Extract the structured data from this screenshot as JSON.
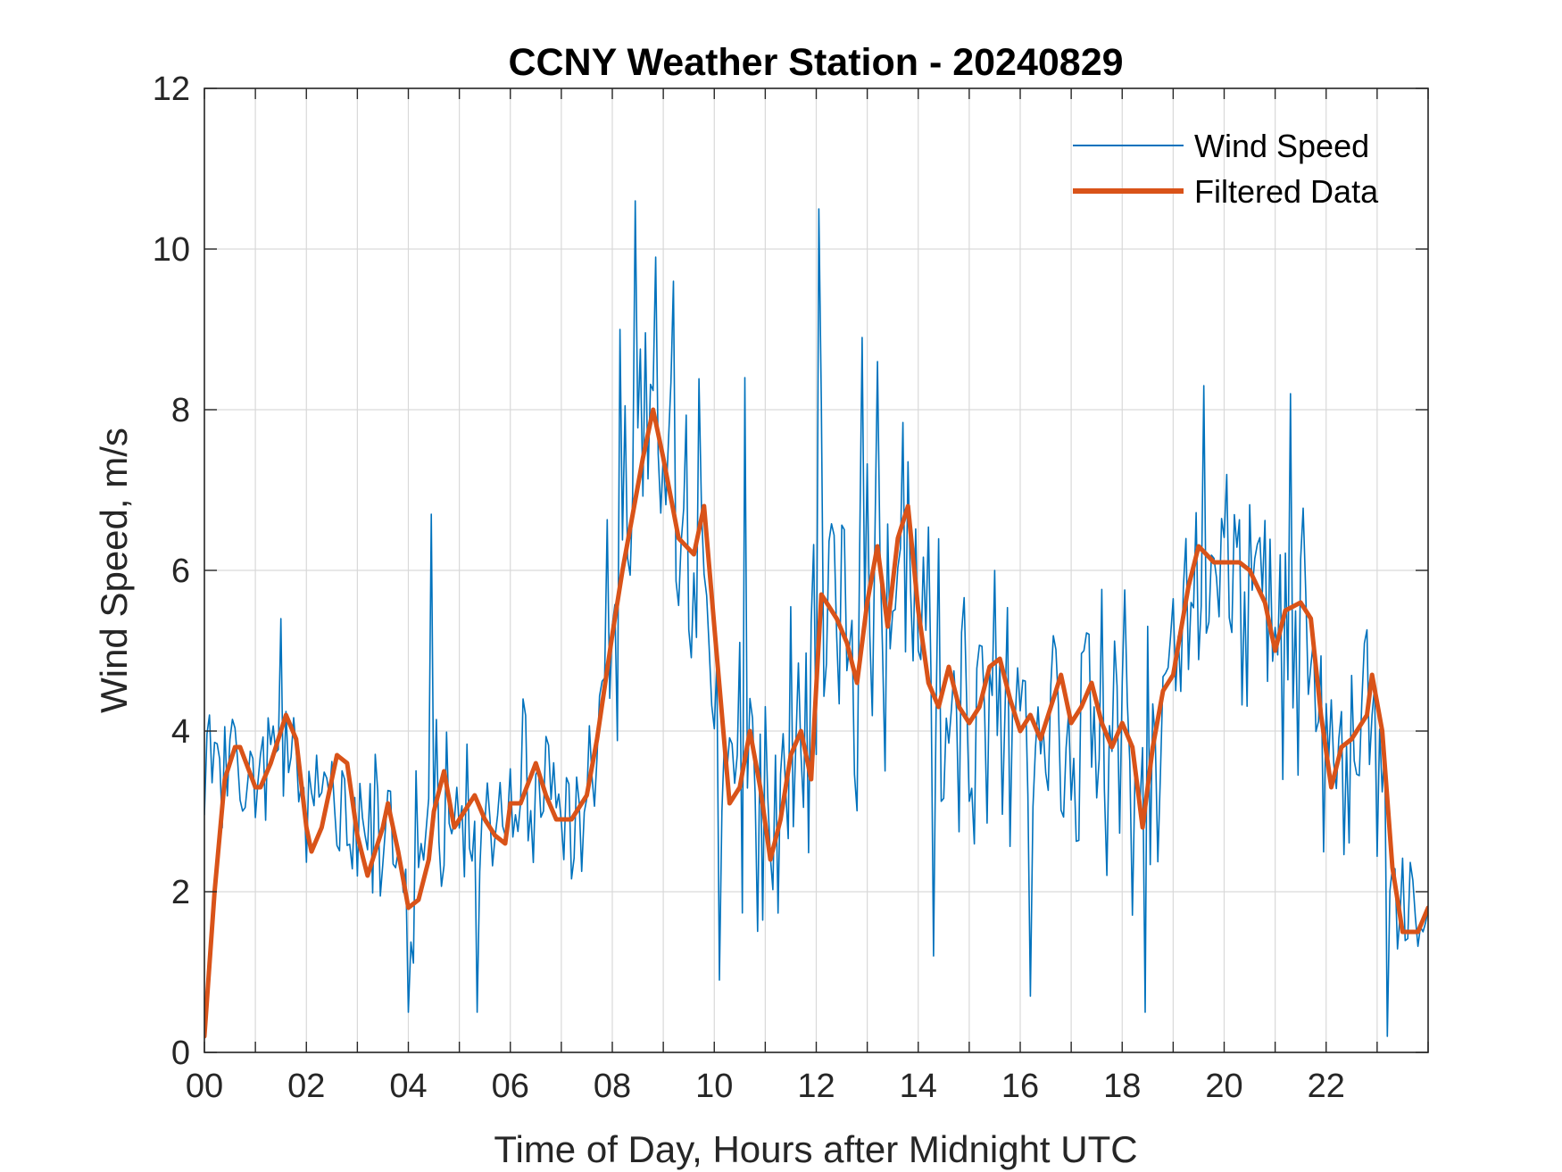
{
  "chart_data": {
    "type": "line",
    "title": "CCNY Weather Station - 20240829",
    "xlabel": "Time of Day, Hours after Midnight UTC",
    "ylabel": "Wind Speed, m/s",
    "xlim": [
      0,
      24
    ],
    "ylim": [
      0,
      12
    ],
    "x_ticks": [
      0,
      2,
      4,
      6,
      8,
      10,
      12,
      14,
      16,
      18,
      20,
      22
    ],
    "x_tick_labels": [
      "00",
      "02",
      "04",
      "06",
      "08",
      "10",
      "12",
      "14",
      "16",
      "18",
      "20",
      "22"
    ],
    "y_ticks": [
      0,
      2,
      4,
      6,
      8,
      10,
      12
    ],
    "y_tick_labels": [
      "0",
      "2",
      "4",
      "6",
      "8",
      "10",
      "12"
    ],
    "grid": true,
    "legend_position": "top-right",
    "series": [
      {
        "name": "Wind Speed",
        "color": "#0072BD",
        "style": "thin-noisy",
        "x_step": 0.05,
        "base": [
          [
            0.0,
            3.3
          ],
          [
            0.5,
            3.6
          ],
          [
            1.0,
            3.5
          ],
          [
            1.5,
            3.9
          ],
          [
            2.0,
            2.9
          ],
          [
            2.5,
            3.4
          ],
          [
            3.0,
            2.4
          ],
          [
            3.5,
            2.7
          ],
          [
            4.0,
            2.0
          ],
          [
            4.5,
            3.2
          ],
          [
            5.0,
            3.1
          ],
          [
            5.5,
            2.9
          ],
          [
            6.0,
            3.0
          ],
          [
            6.5,
            3.4
          ],
          [
            7.0,
            3.0
          ],
          [
            7.5,
            3.1
          ],
          [
            7.8,
            3.9
          ],
          [
            8.2,
            5.8
          ],
          [
            8.5,
            7.2
          ],
          [
            8.8,
            7.6
          ],
          [
            9.2,
            6.6
          ],
          [
            9.6,
            6.3
          ],
          [
            9.9,
            5.6
          ],
          [
            10.2,
            3.2
          ],
          [
            10.7,
            3.4
          ],
          [
            11.0,
            2.8
          ],
          [
            11.5,
            3.7
          ],
          [
            11.9,
            3.6
          ],
          [
            12.1,
            5.6
          ],
          [
            12.5,
            5.2
          ],
          [
            13.0,
            5.7
          ],
          [
            13.4,
            5.8
          ],
          [
            13.7,
            6.5
          ],
          [
            14.0,
            5.2
          ],
          [
            14.5,
            4.4
          ],
          [
            15.0,
            4.3
          ],
          [
            15.5,
            4.7
          ],
          [
            16.0,
            4.2
          ],
          [
            16.5,
            4.2
          ],
          [
            17.0,
            4.0
          ],
          [
            17.5,
            4.1
          ],
          [
            18.0,
            3.9
          ],
          [
            18.3,
            3.2
          ],
          [
            18.6,
            3.9
          ],
          [
            19.0,
            4.7
          ],
          [
            19.5,
            6.0
          ],
          [
            20.0,
            6.0
          ],
          [
            20.5,
            5.8
          ],
          [
            21.0,
            5.4
          ],
          [
            21.6,
            5.4
          ],
          [
            22.0,
            3.4
          ],
          [
            22.4,
            3.9
          ],
          [
            22.8,
            4.3
          ],
          [
            23.1,
            3.2
          ],
          [
            23.4,
            1.6
          ],
          [
            24.0,
            1.6
          ]
        ],
        "spread": [
          [
            0.0,
            0.7
          ],
          [
            2.0,
            0.9
          ],
          [
            4.0,
            1.1
          ],
          [
            7.5,
            1.0
          ],
          [
            8.0,
            2.4
          ],
          [
            9.8,
            2.6
          ],
          [
            10.3,
            2.3
          ],
          [
            11.8,
            1.9
          ],
          [
            12.0,
            2.4
          ],
          [
            14.0,
            2.0
          ],
          [
            18.0,
            1.7
          ],
          [
            19.0,
            1.9
          ],
          [
            21.5,
            1.9
          ],
          [
            22.2,
            1.7
          ],
          [
            23.2,
            1.0
          ],
          [
            24.0,
            1.1
          ]
        ],
        "spikes": [
          [
            0.1,
            4.2
          ],
          [
            1.5,
            5.4
          ],
          [
            4.45,
            6.7
          ],
          [
            8.15,
            9.0
          ],
          [
            8.45,
            10.6
          ],
          [
            8.85,
            9.9
          ],
          [
            9.2,
            9.6
          ],
          [
            10.6,
            8.4
          ],
          [
            12.05,
            10.5
          ],
          [
            12.9,
            8.9
          ],
          [
            13.2,
            8.6
          ],
          [
            19.6,
            8.3
          ],
          [
            21.3,
            8.2
          ],
          [
            4.0,
            0.5
          ],
          [
            5.35,
            0.5
          ],
          [
            10.1,
            0.9
          ],
          [
            14.3,
            1.2
          ],
          [
            16.2,
            0.7
          ],
          [
            18.45,
            0.5
          ],
          [
            23.2,
            0.2
          ]
        ]
      },
      {
        "name": "Filtered Data",
        "color": "#D95319",
        "style": "thick-smooth",
        "points": [
          [
            0.0,
            0.2
          ],
          [
            0.2,
            2.0
          ],
          [
            0.4,
            3.4
          ],
          [
            0.6,
            3.8
          ],
          [
            0.7,
            3.8
          ],
          [
            1.0,
            3.3
          ],
          [
            1.1,
            3.3
          ],
          [
            1.3,
            3.6
          ],
          [
            1.6,
            4.2
          ],
          [
            1.8,
            3.9
          ],
          [
            2.0,
            2.8
          ],
          [
            2.1,
            2.5
          ],
          [
            2.3,
            2.8
          ],
          [
            2.6,
            3.7
          ],
          [
            2.8,
            3.6
          ],
          [
            3.0,
            2.7
          ],
          [
            3.2,
            2.2
          ],
          [
            3.5,
            2.8
          ],
          [
            3.6,
            3.1
          ],
          [
            3.8,
            2.5
          ],
          [
            4.0,
            1.8
          ],
          [
            4.2,
            1.9
          ],
          [
            4.4,
            2.4
          ],
          [
            4.5,
            3.0
          ],
          [
            4.7,
            3.5
          ],
          [
            4.9,
            2.8
          ],
          [
            5.2,
            3.1
          ],
          [
            5.3,
            3.2
          ],
          [
            5.5,
            2.9
          ],
          [
            5.7,
            2.7
          ],
          [
            5.9,
            2.6
          ],
          [
            6.0,
            3.1
          ],
          [
            6.2,
            3.1
          ],
          [
            6.5,
            3.6
          ],
          [
            6.7,
            3.2
          ],
          [
            6.9,
            2.9
          ],
          [
            7.2,
            2.9
          ],
          [
            7.5,
            3.2
          ],
          [
            7.7,
            3.9
          ],
          [
            8.0,
            5.2
          ],
          [
            8.2,
            6.0
          ],
          [
            8.4,
            6.7
          ],
          [
            8.6,
            7.4
          ],
          [
            8.8,
            8.0
          ],
          [
            9.0,
            7.4
          ],
          [
            9.3,
            6.4
          ],
          [
            9.6,
            6.2
          ],
          [
            9.8,
            6.8
          ],
          [
            10.0,
            5.3
          ],
          [
            10.3,
            3.1
          ],
          [
            10.5,
            3.3
          ],
          [
            10.7,
            4.0
          ],
          [
            10.9,
            3.3
          ],
          [
            11.1,
            2.4
          ],
          [
            11.3,
            2.9
          ],
          [
            11.5,
            3.7
          ],
          [
            11.7,
            4.0
          ],
          [
            11.9,
            3.4
          ],
          [
            12.1,
            5.7
          ],
          [
            12.4,
            5.4
          ],
          [
            12.6,
            5.1
          ],
          [
            12.8,
            4.6
          ],
          [
            13.0,
            5.6
          ],
          [
            13.2,
            6.3
          ],
          [
            13.4,
            5.3
          ],
          [
            13.6,
            6.4
          ],
          [
            13.8,
            6.8
          ],
          [
            14.0,
            5.5
          ],
          [
            14.2,
            4.6
          ],
          [
            14.4,
            4.3
          ],
          [
            14.6,
            4.8
          ],
          [
            14.8,
            4.3
          ],
          [
            15.0,
            4.1
          ],
          [
            15.2,
            4.3
          ],
          [
            15.4,
            4.8
          ],
          [
            15.6,
            4.9
          ],
          [
            15.8,
            4.4
          ],
          [
            16.0,
            4.0
          ],
          [
            16.2,
            4.2
          ],
          [
            16.4,
            3.9
          ],
          [
            16.6,
            4.3
          ],
          [
            16.8,
            4.7
          ],
          [
            17.0,
            4.1
          ],
          [
            17.2,
            4.3
          ],
          [
            17.4,
            4.6
          ],
          [
            17.6,
            4.1
          ],
          [
            17.8,
            3.8
          ],
          [
            18.0,
            4.1
          ],
          [
            18.2,
            3.8
          ],
          [
            18.4,
            2.8
          ],
          [
            18.6,
            3.8
          ],
          [
            18.8,
            4.5
          ],
          [
            19.0,
            4.7
          ],
          [
            19.3,
            5.8
          ],
          [
            19.5,
            6.3
          ],
          [
            19.8,
            6.1
          ],
          [
            20.0,
            6.1
          ],
          [
            20.3,
            6.1
          ],
          [
            20.5,
            6.0
          ],
          [
            20.8,
            5.6
          ],
          [
            21.0,
            5.0
          ],
          [
            21.2,
            5.5
          ],
          [
            21.5,
            5.6
          ],
          [
            21.7,
            5.4
          ],
          [
            21.9,
            4.2
          ],
          [
            22.1,
            3.3
          ],
          [
            22.3,
            3.8
          ],
          [
            22.5,
            3.9
          ],
          [
            22.8,
            4.2
          ],
          [
            22.9,
            4.7
          ],
          [
            23.1,
            4.0
          ],
          [
            23.3,
            2.3
          ],
          [
            23.5,
            1.5
          ],
          [
            23.8,
            1.5
          ],
          [
            24.0,
            1.8
          ]
        ]
      }
    ]
  }
}
